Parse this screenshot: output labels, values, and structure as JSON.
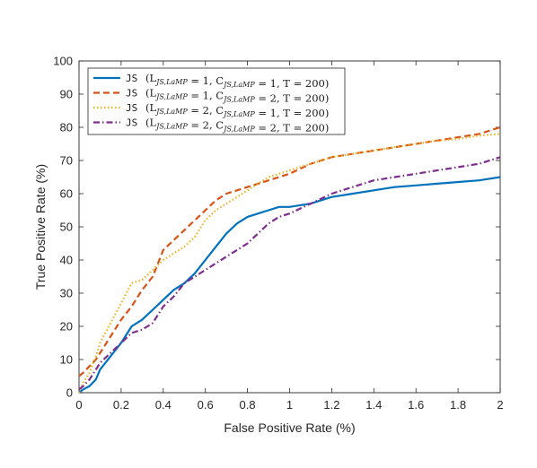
{
  "chart_data": {
    "type": "line",
    "xlabel": "False Positive Rate (%)",
    "ylabel": "True Positive Rate (%)",
    "xlim": [
      0,
      2
    ],
    "ylim": [
      0,
      100
    ],
    "xticks": [
      "0",
      "0.2",
      "0.4",
      "0.6",
      "0.8",
      "1",
      "1.2",
      "1.4",
      "1.6",
      "1.8",
      "2"
    ],
    "yticks": [
      "0",
      "10",
      "20",
      "30",
      "40",
      "50",
      "60",
      "70",
      "80",
      "90",
      "100"
    ],
    "grid": false,
    "legend_position": "top-left",
    "series": [
      {
        "name": "JS",
        "label_math": "(L_{JS,LaMP} = 1, C_{JS,LaMP} = 1, T = 200)",
        "color": "#0072BD",
        "style": "solid",
        "x": [
          0,
          0.02,
          0.05,
          0.08,
          0.1,
          0.15,
          0.2,
          0.25,
          0.3,
          0.35,
          0.4,
          0.45,
          0.5,
          0.55,
          0.6,
          0.65,
          0.7,
          0.75,
          0.8,
          0.85,
          0.9,
          0.95,
          1.0,
          1.1,
          1.2,
          1.3,
          1.4,
          1.5,
          1.6,
          1.7,
          1.8,
          1.9,
          2.0
        ],
        "y": [
          0,
          1,
          2,
          4,
          7,
          11,
          15,
          20,
          22,
          25,
          28,
          31,
          33,
          36,
          40,
          44,
          48,
          51,
          53,
          54,
          55,
          56,
          56,
          57,
          59,
          60,
          61,
          62,
          62.5,
          63,
          63.5,
          64,
          65
        ]
      },
      {
        "name": "JS",
        "label_math": "(L_{JS,LaMP} = 1, C_{JS,LaMP} = 2, T = 200)",
        "color": "#D95319",
        "style": "dashed",
        "x": [
          0,
          0.02,
          0.05,
          0.08,
          0.1,
          0.15,
          0.2,
          0.25,
          0.3,
          0.35,
          0.4,
          0.45,
          0.5,
          0.55,
          0.6,
          0.65,
          0.7,
          0.75,
          0.8,
          0.85,
          0.9,
          0.95,
          1.0,
          1.1,
          1.2,
          1.3,
          1.4,
          1.5,
          1.6,
          1.7,
          1.8,
          1.9,
          2.0
        ],
        "y": [
          5,
          6,
          8,
          10,
          12,
          17,
          22,
          26,
          31,
          35,
          43,
          46,
          49,
          52,
          55,
          58,
          60,
          61,
          62,
          63,
          64,
          65,
          66,
          69,
          71,
          72,
          73,
          74,
          75,
          76,
          77,
          78,
          80
        ]
      },
      {
        "name": "JS",
        "label_math": "(L_{JS,LaMP} = 2, C_{JS,LaMP} = 1, T = 200)",
        "color": "#EDB120",
        "style": "dotted",
        "x": [
          0,
          0.02,
          0.05,
          0.08,
          0.1,
          0.15,
          0.2,
          0.25,
          0.3,
          0.35,
          0.4,
          0.45,
          0.5,
          0.55,
          0.6,
          0.65,
          0.7,
          0.75,
          0.8,
          0.85,
          0.9,
          0.95,
          1.0,
          1.1,
          1.2,
          1.3,
          1.4,
          1.5,
          1.6,
          1.7,
          1.8,
          1.9,
          2.0
        ],
        "y": [
          0,
          3,
          6,
          11,
          15,
          21,
          27,
          33,
          34,
          37,
          40,
          42,
          44,
          47,
          52,
          55,
          57,
          59,
          61,
          63,
          65,
          66,
          67,
          69,
          71,
          72,
          73,
          74,
          75,
          76,
          76.5,
          77.5,
          78
        ]
      },
      {
        "name": "JS",
        "label_math": "(L_{JS,LaMP} = 2, C_{JS,LaMP} = 2, T = 200)",
        "color": "#7E2F8E",
        "style": "dashdot",
        "x": [
          0,
          0.02,
          0.05,
          0.08,
          0.1,
          0.15,
          0.2,
          0.25,
          0.3,
          0.35,
          0.4,
          0.45,
          0.5,
          0.55,
          0.6,
          0.65,
          0.7,
          0.75,
          0.8,
          0.85,
          0.9,
          0.95,
          1.0,
          1.1,
          1.2,
          1.3,
          1.4,
          1.5,
          1.6,
          1.7,
          1.8,
          1.9,
          2.0
        ],
        "y": [
          1,
          2,
          4,
          7,
          9,
          12,
          15,
          18,
          19,
          21,
          26,
          29,
          33,
          35,
          37,
          39,
          41,
          43,
          45,
          48,
          51,
          53,
          54,
          57,
          60,
          62,
          64,
          65,
          66,
          67,
          68,
          69,
          71
        ]
      }
    ]
  }
}
